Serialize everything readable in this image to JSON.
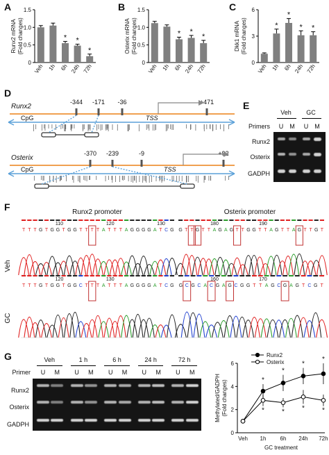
{
  "panels": {
    "A": {
      "label": "A"
    },
    "B": {
      "label": "B"
    },
    "C": {
      "label": "C"
    },
    "D": {
      "label": "D"
    },
    "E": {
      "label": "E"
    },
    "F": {
      "label": "F"
    },
    "G": {
      "label": "G"
    }
  },
  "chart_data": [
    {
      "type": "bar",
      "panel": "A",
      "ylabel": "Runx2 mRNA (Fold changes)",
      "ylabel_lines": [
        "Runx2 mRNA",
        "(Fold changes)"
      ],
      "categories": [
        "Veh",
        "1h",
        "6h",
        "24h",
        "72h"
      ],
      "values": [
        1.0,
        1.05,
        0.55,
        0.48,
        0.18
      ],
      "errors": [
        0.05,
        0.07,
        0.05,
        0.04,
        0.06
      ],
      "significant": [
        "",
        "",
        "*",
        "*",
        "*"
      ],
      "yticks": [
        "0",
        "0.5",
        "1.0",
        "1.5"
      ],
      "ylim": [
        0,
        1.5
      ]
    },
    {
      "type": "bar",
      "panel": "B",
      "ylabel": "Osterix mRNA (Fold changes)",
      "ylabel_lines": [
        "Osterix mRNA",
        "(Fold changes)"
      ],
      "categories": [
        "Veh",
        "1h",
        "6h",
        "24h",
        "72h"
      ],
      "values": [
        1.12,
        1.02,
        0.66,
        0.7,
        0.55
      ],
      "errors": [
        0.05,
        0.05,
        0.06,
        0.07,
        0.08
      ],
      "significant": [
        "",
        "",
        "*",
        "*",
        "*"
      ],
      "yticks": [
        "0",
        "0.5",
        "1.0",
        "1.5"
      ],
      "ylim": [
        0,
        1.5
      ]
    },
    {
      "type": "bar",
      "panel": "C",
      "ylabel": "Dkk1 mRNA (Fold changes)",
      "ylabel_lines": [
        "Dkk1 mRNA",
        "(Fold changes)"
      ],
      "categories": [
        "Veh",
        "1h",
        "6h",
        "24h",
        "72h"
      ],
      "values": [
        1.0,
        3.3,
        4.5,
        3.1,
        3.1
      ],
      "errors": [
        0.1,
        0.5,
        0.5,
        0.5,
        0.4
      ],
      "significant": [
        "",
        "*",
        "*",
        "*",
        "*"
      ],
      "yticks": [
        "0",
        "3",
        "6"
      ],
      "ylim": [
        0,
        6
      ]
    },
    {
      "type": "line",
      "panel": "G",
      "ylabel": "Methylated/GADPH (Fold changes)",
      "ylabel_lines": [
        "Methylated/GADPH",
        "(Fold changes)"
      ],
      "xlabel": "GC treatment",
      "categories": [
        "Veh",
        "1h",
        "6h",
        "24h",
        "72h"
      ],
      "yticks": [
        "0",
        "2",
        "4",
        "6"
      ],
      "ylim": [
        0,
        6
      ],
      "legend_position": "top-center",
      "series": [
        {
          "name": "Runx2",
          "values": [
            1.0,
            3.6,
            4.3,
            4.9,
            5.1
          ],
          "errors": [
            0.2,
            0.6,
            0.7,
            0.7,
            0.9
          ],
          "marker": "filled"
        },
        {
          "name": "Osterix",
          "values": [
            1.0,
            2.8,
            2.6,
            3.1,
            2.8
          ],
          "errors": [
            0.2,
            0.5,
            0.4,
            0.6,
            0.5
          ],
          "marker": "open"
        }
      ],
      "significant": [
        "",
        "*",
        "*",
        "*",
        "*"
      ]
    }
  ],
  "panelD": {
    "runx2": {
      "gene": "Runx2",
      "positions": [
        "-344",
        "-171",
        "-36",
        "+471"
      ],
      "cpg": "CpG",
      "tss": "TSS"
    },
    "osterix": {
      "gene": "Osterix",
      "positions": [
        "-370",
        "-239",
        "-9",
        "+92"
      ],
      "cpg": "CpG",
      "tss": "TSS"
    }
  },
  "panelE": {
    "groups": [
      "Veh",
      "GC"
    ],
    "primers_label": "Primers",
    "lanes": [
      "U",
      "M",
      "U",
      "M"
    ],
    "rows": [
      "Runx2",
      "Osterix",
      "GADPH"
    ]
  },
  "panelF": {
    "title_left": "Runx2 promoter",
    "title_right": "Osterix promoter",
    "row_labels": [
      "Veh",
      "GC"
    ],
    "veh_left_seq": "TTTGTGGTGGTTTTATTTAGGGGATCG",
    "veh_left_nums": [
      "110",
      "120",
      "130"
    ],
    "veh_right_seq": "GTTGTTAGAGTTGGTTAGTTAGTTGT",
    "veh_right_nums": [
      "180",
      "190"
    ],
    "gc_left_seq": "TTTGTGGTGGCTTTATTTAGGGGATCG",
    "gc_left_nums": [
      "120",
      "130"
    ],
    "gc_right_seq": "GCGCACGAGCGGTTAGCGAGTCGT",
    "gc_right_nums": [
      "160",
      "170"
    ]
  },
  "panelG": {
    "primer_label": "Primer",
    "groups": [
      "Veh",
      "1 h",
      "6 h",
      "24 h",
      "72 h"
    ],
    "lanes": [
      "U",
      "M"
    ],
    "rows": [
      "Runx2",
      "Osterix",
      "GADPH"
    ]
  },
  "colors": {
    "bar": "#808080",
    "promoter_line": "#f0a050",
    "cpg_arrow": "#5aa0d8",
    "gel": "#151515",
    "base_A": "#2a9d2a",
    "base_T": "#e02020",
    "base_G": "#222222",
    "base_C": "#2040d0"
  }
}
